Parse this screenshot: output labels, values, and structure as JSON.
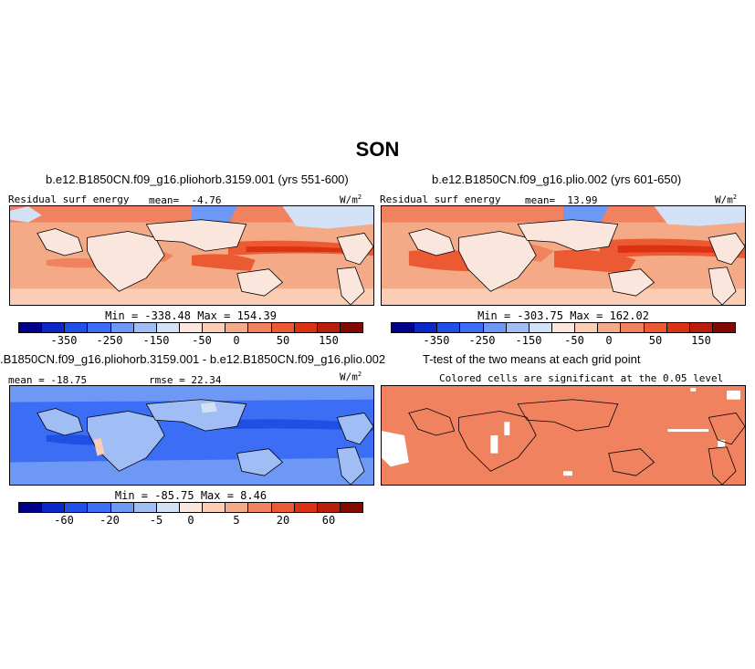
{
  "season": "SON",
  "colorbar_colors": [
    "#00008b",
    "#0a28c8",
    "#1e50e6",
    "#3c6ef5",
    "#6e98f5",
    "#a0bef5",
    "#d2e1f5",
    "#fae6dc",
    "#facdb4",
    "#f5aa87",
    "#f0825f",
    "#eb5a32",
    "#dc3214",
    "#b91e0a",
    "#820a00"
  ],
  "panels": {
    "top_left": {
      "title": "b.e12.B1850CN.f09_g16.pliohorb.3159.001 (yrs 551-600)",
      "var_label": "Residual surf energy",
      "mean_label": "mean=",
      "mean_value": "-4.76",
      "units": "W/m",
      "units_sup": "2",
      "minmax": "Min = -338.48 Max = 154.39",
      "colorbar_ticks": [
        "-350",
        "-250",
        "-150",
        "-50",
        "0",
        "50",
        "150"
      ]
    },
    "top_right": {
      "title": "b.e12.B1850CN.f09_g16.plio.002 (yrs 601-650)",
      "var_label": "Residual surf energy",
      "mean_label": "mean=",
      "mean_value": "13.99",
      "units": "W/m",
      "units_sup": "2",
      "minmax": "Min = -303.75 Max = 162.02",
      "colorbar_ticks": [
        "-350",
        "-250",
        "-150",
        "-50",
        "0",
        "50",
        "150"
      ]
    },
    "bottom_left": {
      "title": ".B1850CN.f09_g16.pliohorb.3159.001 - b.e12.B1850CN.f09_g16.plio.002",
      "mean_text": "mean = -18.75",
      "rmse_text": "rmse = 22.34",
      "units": "W/m",
      "units_sup": "2",
      "minmax": "Min = -85.75 Max = 8.46",
      "colorbar_ticks": [
        "-60",
        "-20",
        "-5",
        "0",
        "5",
        "20",
        "60"
      ]
    },
    "bottom_right": {
      "title": "T-test of the two means at each grid point",
      "subtitle": "Colored cells are significant at the 0.05 level"
    }
  }
}
